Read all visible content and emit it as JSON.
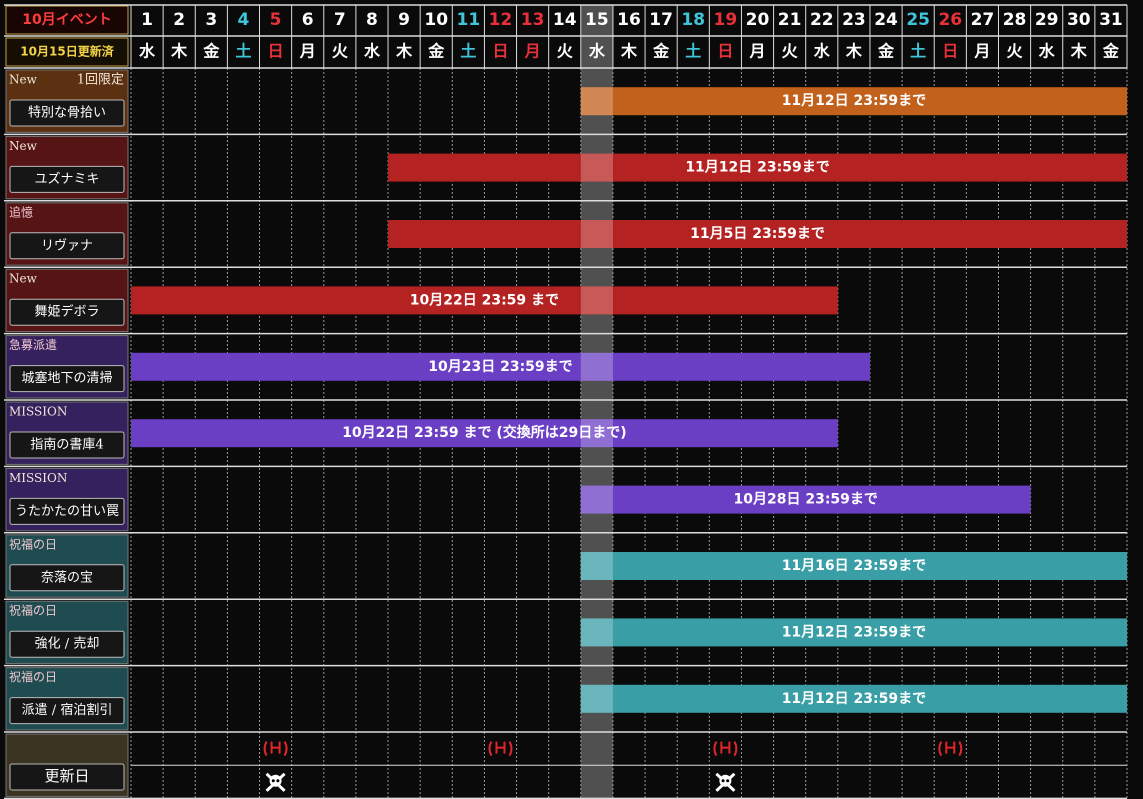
{
  "header": {
    "title": "10月イベント",
    "subtitle": "10月15日更新済"
  },
  "today": 15,
  "days": [
    {
      "date": 1,
      "weekday": "水",
      "color": "#ffffff"
    },
    {
      "date": 2,
      "weekday": "木",
      "color": "#ffffff"
    },
    {
      "date": 3,
      "weekday": "金",
      "color": "#ffffff"
    },
    {
      "date": 4,
      "weekday": "土",
      "color": "#3fc4d8"
    },
    {
      "date": 5,
      "weekday": "日",
      "color": "#e8303a"
    },
    {
      "date": 6,
      "weekday": "月",
      "color": "#ffffff"
    },
    {
      "date": 7,
      "weekday": "火",
      "color": "#ffffff"
    },
    {
      "date": 8,
      "weekday": "水",
      "color": "#ffffff"
    },
    {
      "date": 9,
      "weekday": "木",
      "color": "#ffffff"
    },
    {
      "date": 10,
      "weekday": "金",
      "color": "#ffffff"
    },
    {
      "date": 11,
      "weekday": "土",
      "color": "#3fc4d8"
    },
    {
      "date": 12,
      "weekday": "日",
      "color": "#e8303a"
    },
    {
      "date": 13,
      "weekday": "月",
      "color": "#e8303a"
    },
    {
      "date": 14,
      "weekday": "火",
      "color": "#ffffff"
    },
    {
      "date": 15,
      "weekday": "水",
      "color": "#ffffff"
    },
    {
      "date": 16,
      "weekday": "木",
      "color": "#ffffff"
    },
    {
      "date": 17,
      "weekday": "金",
      "color": "#ffffff"
    },
    {
      "date": 18,
      "weekday": "土",
      "color": "#3fc4d8"
    },
    {
      "date": 19,
      "weekday": "日",
      "color": "#e8303a"
    },
    {
      "date": 20,
      "weekday": "月",
      "color": "#ffffff"
    },
    {
      "date": 21,
      "weekday": "火",
      "color": "#ffffff"
    },
    {
      "date": 22,
      "weekday": "水",
      "color": "#ffffff"
    },
    {
      "date": 23,
      "weekday": "木",
      "color": "#ffffff"
    },
    {
      "date": 24,
      "weekday": "金",
      "color": "#ffffff"
    },
    {
      "date": 25,
      "weekday": "土",
      "color": "#3fc4d8"
    },
    {
      "date": 26,
      "weekday": "日",
      "color": "#e8303a"
    },
    {
      "date": 27,
      "weekday": "月",
      "color": "#ffffff"
    },
    {
      "date": 28,
      "weekday": "火",
      "color": "#ffffff"
    },
    {
      "date": 29,
      "weekday": "水",
      "color": "#ffffff"
    },
    {
      "date": 30,
      "weekday": "木",
      "color": "#ffffff"
    },
    {
      "date": 31,
      "weekday": "金",
      "color": "#ffffff"
    }
  ],
  "events": [
    {
      "tag": "New",
      "note": "1回限定",
      "name": "特別な骨拾い",
      "label": "11月12日 23:59まで",
      "start": 15,
      "end": 31,
      "color": "#c2611c"
    },
    {
      "tag": "New",
      "name": "ユズナミキ",
      "label": "11月12日 23:59まで",
      "start": 9,
      "end": 31,
      "color": "#b52222"
    },
    {
      "tag": "追憶",
      "name": "リヴァナ",
      "label": "11月5日 23:59まで",
      "start": 9,
      "end": 31,
      "color": "#b52222"
    },
    {
      "tag": "New",
      "name": "舞姫デボラ",
      "label": "10月22日 23:59 まで",
      "start": 1,
      "end": 22,
      "color": "#b52222"
    },
    {
      "tag": "急募派遣",
      "name": "城塞地下の清掃",
      "label": "10月23日 23:59まで",
      "start": 1,
      "end": 23,
      "color": "#6b3fc4"
    },
    {
      "tag": "MISSION",
      "name": "指南の書庫4",
      "label": "10月22日 23:59 まで (交換所は29日まで)",
      "start": 1,
      "end": 22,
      "color": "#6b3fc4"
    },
    {
      "tag": "MISSION",
      "name": "うたかたの甘い罠",
      "label": "10月28日 23:59まで",
      "start": 15,
      "end": 28,
      "color": "#6b3fc4"
    },
    {
      "tag": "祝福の日",
      "name": "奈落の宝",
      "label": "11月16日 23:59まで",
      "start": 15,
      "end": 31,
      "color": "#3a9ea6"
    },
    {
      "tag": "祝福の日",
      "name": "強化 / 売却",
      "label": "11月12日 23:59まで",
      "start": 15,
      "end": 31,
      "color": "#3a9ea6"
    },
    {
      "tag": "祝福の日",
      "name": "派遣 / 宿泊割引",
      "label": "11月12日 23:59まで",
      "start": 15,
      "end": 31,
      "color": "#3a9ea6"
    }
  ],
  "updates": {
    "name": "更新日",
    "maintenance_days": [
      5,
      12,
      19,
      26
    ],
    "update_days": [
      5,
      19
    ]
  }
}
